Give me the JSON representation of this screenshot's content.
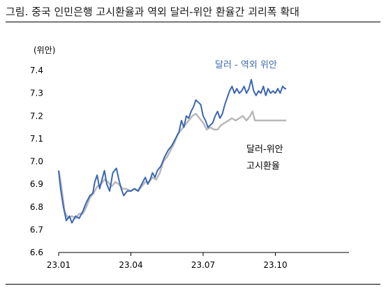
{
  "figure": {
    "title": "그림. 중국 인민은행 고시환율과 역외 달러-위안 환율간 괴리폭 확대"
  },
  "chart_data": {
    "type": "line",
    "title": "그림. 중국 인민은행 고시환율과 역외 달러-위안 환율간 괴리폭 확대",
    "ylabel": "(위안)",
    "xlabel": "",
    "ylim": [
      6.6,
      7.4
    ],
    "yticks": [
      "6.6",
      "6.7",
      "6.8",
      "6.9",
      "7.0",
      "7.1",
      "7.2",
      "7.3",
      "7.4"
    ],
    "xticks": [
      "23.01",
      "23.04",
      "23.07",
      "23.10"
    ],
    "xlim_months": [
      0,
      12
    ],
    "grid": false,
    "series": [
      {
        "name": "달러 - 역외 위안",
        "color": "#3a66b3",
        "points": [
          [
            0.0,
            6.96
          ],
          [
            0.08,
            6.88
          ],
          [
            0.2,
            6.8
          ],
          [
            0.32,
            6.74
          ],
          [
            0.45,
            6.76
          ],
          [
            0.55,
            6.73
          ],
          [
            0.7,
            6.76
          ],
          [
            0.85,
            6.75
          ],
          [
            1.0,
            6.78
          ],
          [
            1.15,
            6.82
          ],
          [
            1.3,
            6.85
          ],
          [
            1.42,
            6.86
          ],
          [
            1.5,
            6.91
          ],
          [
            1.6,
            6.94
          ],
          [
            1.7,
            6.88
          ],
          [
            1.8,
            6.92
          ],
          [
            1.9,
            6.96
          ],
          [
            2.0,
            6.9
          ],
          [
            2.12,
            6.87
          ],
          [
            2.25,
            6.95
          ],
          [
            2.4,
            6.97
          ],
          [
            2.5,
            6.92
          ],
          [
            2.6,
            6.88
          ],
          [
            2.7,
            6.85
          ],
          [
            2.85,
            6.87
          ],
          [
            3.0,
            6.87
          ],
          [
            3.15,
            6.88
          ],
          [
            3.3,
            6.87
          ],
          [
            3.45,
            6.9
          ],
          [
            3.6,
            6.93
          ],
          [
            3.7,
            6.9
          ],
          [
            3.8,
            6.92
          ],
          [
            3.9,
            6.95
          ],
          [
            4.0,
            6.93
          ],
          [
            4.1,
            6.96
          ],
          [
            4.25,
            6.98
          ],
          [
            4.4,
            7.02
          ],
          [
            4.55,
            7.05
          ],
          [
            4.7,
            7.07
          ],
          [
            4.85,
            7.1
          ],
          [
            5.0,
            7.13
          ],
          [
            5.1,
            7.18
          ],
          [
            5.2,
            7.15
          ],
          [
            5.3,
            7.2
          ],
          [
            5.4,
            7.19
          ],
          [
            5.5,
            7.22
          ],
          [
            5.6,
            7.24
          ],
          [
            5.7,
            7.27
          ],
          [
            5.8,
            7.26
          ],
          [
            5.9,
            7.25
          ],
          [
            6.0,
            7.2
          ],
          [
            6.1,
            7.18
          ],
          [
            6.2,
            7.15
          ],
          [
            6.3,
            7.16
          ],
          [
            6.4,
            7.17
          ],
          [
            6.5,
            7.2
          ],
          [
            6.6,
            7.22
          ],
          [
            6.7,
            7.19
          ],
          [
            6.8,
            7.21
          ],
          [
            6.9,
            7.25
          ],
          [
            7.0,
            7.28
          ],
          [
            7.1,
            7.31
          ],
          [
            7.2,
            7.33
          ],
          [
            7.3,
            7.3
          ],
          [
            7.4,
            7.32
          ],
          [
            7.5,
            7.3
          ],
          [
            7.6,
            7.31
          ],
          [
            7.7,
            7.33
          ],
          [
            7.8,
            7.3
          ],
          [
            7.9,
            7.32
          ],
          [
            8.0,
            7.36
          ],
          [
            8.1,
            7.31
          ],
          [
            8.2,
            7.29
          ],
          [
            8.3,
            7.31
          ],
          [
            8.4,
            7.3
          ],
          [
            8.5,
            7.33
          ],
          [
            8.6,
            7.29
          ],
          [
            8.7,
            7.32
          ],
          [
            8.8,
            7.3
          ],
          [
            8.9,
            7.31
          ],
          [
            9.0,
            7.3
          ],
          [
            9.1,
            7.32
          ],
          [
            9.2,
            7.3
          ],
          [
            9.3,
            7.33
          ],
          [
            9.4,
            7.32
          ],
          [
            9.45,
            7.32
          ]
        ]
      },
      {
        "name": "달러-위안 고시환율",
        "color": "#b8b8b8",
        "points": [
          [
            0.0,
            6.96
          ],
          [
            0.1,
            6.9
          ],
          [
            0.25,
            6.78
          ],
          [
            0.4,
            6.75
          ],
          [
            0.55,
            6.76
          ],
          [
            0.7,
            6.75
          ],
          [
            0.85,
            6.77
          ],
          [
            1.0,
            6.77
          ],
          [
            1.15,
            6.8
          ],
          [
            1.3,
            6.84
          ],
          [
            1.45,
            6.86
          ],
          [
            1.6,
            6.89
          ],
          [
            1.75,
            6.9
          ],
          [
            1.9,
            6.92
          ],
          [
            2.05,
            6.91
          ],
          [
            2.2,
            6.89
          ],
          [
            2.35,
            6.91
          ],
          [
            2.5,
            6.9
          ],
          [
            2.65,
            6.88
          ],
          [
            2.8,
            6.88
          ],
          [
            3.0,
            6.87
          ],
          [
            3.15,
            6.88
          ],
          [
            3.3,
            6.87
          ],
          [
            3.45,
            6.89
          ],
          [
            3.6,
            6.91
          ],
          [
            3.75,
            6.91
          ],
          [
            3.9,
            6.93
          ],
          [
            4.05,
            6.92
          ],
          [
            4.2,
            6.95
          ],
          [
            4.35,
            7.0
          ],
          [
            4.5,
            7.02
          ],
          [
            4.65,
            7.05
          ],
          [
            4.8,
            7.08
          ],
          [
            4.95,
            7.12
          ],
          [
            5.1,
            7.14
          ],
          [
            5.25,
            7.16
          ],
          [
            5.4,
            7.18
          ],
          [
            5.55,
            7.2
          ],
          [
            5.7,
            7.21
          ],
          [
            5.85,
            7.19
          ],
          [
            6.0,
            7.17
          ],
          [
            6.15,
            7.14
          ],
          [
            6.3,
            7.15
          ],
          [
            6.45,
            7.14
          ],
          [
            6.6,
            7.14
          ],
          [
            6.75,
            7.16
          ],
          [
            6.9,
            7.17
          ],
          [
            7.05,
            7.18
          ],
          [
            7.2,
            7.19
          ],
          [
            7.35,
            7.18
          ],
          [
            7.5,
            7.19
          ],
          [
            7.65,
            7.2
          ],
          [
            7.8,
            7.18
          ],
          [
            7.95,
            7.2
          ],
          [
            8.05,
            7.22
          ],
          [
            8.15,
            7.18
          ],
          [
            8.3,
            7.18
          ],
          [
            8.5,
            7.18
          ],
          [
            8.7,
            7.18
          ],
          [
            8.9,
            7.18
          ],
          [
            9.1,
            7.18
          ],
          [
            9.3,
            7.18
          ],
          [
            9.45,
            7.18
          ]
        ]
      }
    ],
    "annotations": {
      "cny_line1": "달러-위안",
      "cny_line2": "고시환율"
    }
  }
}
